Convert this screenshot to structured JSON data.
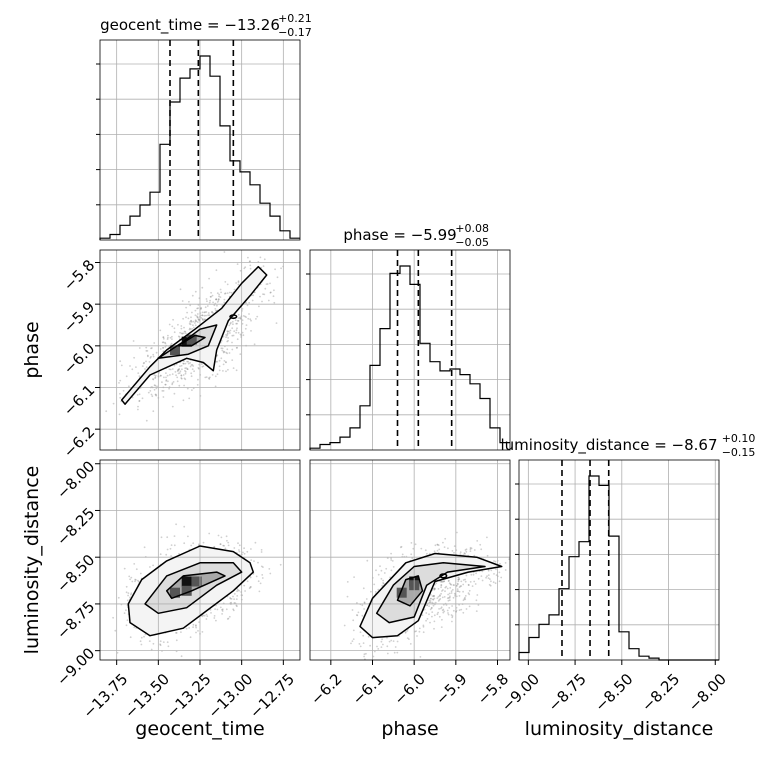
{
  "chart_data": {
    "type": "corner",
    "parameters": [
      {
        "name": "geocent_time",
        "title_main": "geocent_time = −13.26",
        "title_plus": "+0.21",
        "title_minus": "−0.17",
        "range": [
          -13.85,
          -12.65
        ],
        "ticks": [
          -13.75,
          -13.5,
          -13.25,
          -13.0,
          -12.75
        ],
        "tick_labels": [
          "−13.75",
          "−13.50",
          "−13.25",
          "−13.00",
          "−12.75"
        ],
        "quantiles": [
          -13.43,
          -13.26,
          -13.05
        ],
        "hist": [
          0.01,
          0.03,
          0.08,
          0.13,
          0.19,
          0.26,
          0.52,
          0.75,
          0.88,
          0.93,
          1.0,
          0.89,
          0.62,
          0.43,
          0.37,
          0.3,
          0.2,
          0.13,
          0.05,
          0.01
        ]
      },
      {
        "name": "phase",
        "title_main": "phase = −5.99",
        "title_plus": "+0.08",
        "title_minus": "−0.05",
        "range": [
          -6.25,
          -5.77
        ],
        "ticks": [
          -6.2,
          -6.1,
          -6.0,
          -5.9,
          -5.8
        ],
        "tick_labels": [
          "−6.2",
          "−6.1",
          "−6.0",
          "−5.9",
          "−5.8"
        ],
        "y_tick_labels": [
          "−5.8",
          "−5.9",
          "−6.0",
          "−6.1",
          "−6.2"
        ],
        "quantiles": [
          -6.04,
          -5.99,
          -5.91
        ],
        "hist": [
          0.01,
          0.03,
          0.04,
          0.07,
          0.12,
          0.24,
          0.46,
          0.66,
          0.96,
          1.0,
          0.9,
          0.58,
          0.48,
          0.43,
          0.44,
          0.41,
          0.36,
          0.28,
          0.12,
          0.04
        ]
      },
      {
        "name": "luminosity_distance",
        "title_main": "luminosity_distance = −8.67",
        "title_plus": "+0.10",
        "title_minus": "−0.15",
        "range": [
          -9.05,
          -7.98
        ],
        "ticks": [
          -9.0,
          -8.75,
          -8.5,
          -8.25,
          -8.0
        ],
        "tick_labels": [
          "−9.00",
          "−8.75",
          "−8.50",
          "−8.25",
          "−8.00"
        ],
        "y_tick_labels": [
          "−8.00",
          "−8.25",
          "−8.50",
          "−8.75",
          "−9.00"
        ],
        "quantiles": [
          -8.82,
          -8.67,
          -8.57
        ],
        "hist": [
          0.04,
          0.12,
          0.19,
          0.24,
          0.38,
          0.55,
          0.63,
          0.98,
          0.93,
          0.66,
          0.15,
          0.06,
          0.02,
          0.01,
          0.0,
          0.0,
          0.0,
          0.0,
          0.0,
          0.0
        ]
      }
    ],
    "pairs": [
      {
        "x_param": "geocent_time",
        "y_param": "phase",
        "outer": [
          [
            -13.72,
            -6.13
          ],
          [
            -13.55,
            -6.05
          ],
          [
            -13.45,
            -6.01
          ],
          [
            -13.28,
            -5.96
          ],
          [
            -13.12,
            -5.91
          ],
          [
            -13.0,
            -5.85
          ],
          [
            -12.9,
            -5.81
          ],
          [
            -12.85,
            -5.83
          ],
          [
            -12.95,
            -5.88
          ],
          [
            -13.08,
            -5.94
          ],
          [
            -13.15,
            -6.01
          ],
          [
            -13.17,
            -6.06
          ],
          [
            -13.23,
            -6.04
          ],
          [
            -13.33,
            -6.03
          ],
          [
            -13.55,
            -6.07
          ],
          [
            -13.7,
            -6.14
          ]
        ],
        "middle": [
          [
            -13.5,
            -6.03
          ],
          [
            -13.35,
            -5.99
          ],
          [
            -13.25,
            -5.96
          ],
          [
            -13.15,
            -5.95
          ],
          [
            -13.2,
            -6.0
          ],
          [
            -13.32,
            -6.02
          ]
        ],
        "inner": [
          [
            -13.38,
            -6.0
          ],
          [
            -13.28,
            -5.975
          ],
          [
            -13.22,
            -5.98
          ],
          [
            -13.3,
            -6.0
          ]
        ],
        "blobs": [
          [
            -13.05,
            -5.93,
            0.02,
            0.004
          ]
        ],
        "dense": [
          [
            -13.33,
            -5.99
          ],
          [
            -13.4,
            -6.01
          ],
          [
            -13.3,
            -5.985
          ]
        ]
      },
      {
        "x_param": "geocent_time",
        "y_param": "luminosity_distance",
        "outer": [
          [
            -13.68,
            -8.75
          ],
          [
            -13.6,
            -8.62
          ],
          [
            -13.45,
            -8.52
          ],
          [
            -13.25,
            -8.44
          ],
          [
            -13.05,
            -8.47
          ],
          [
            -12.95,
            -8.53
          ],
          [
            -12.93,
            -8.58
          ],
          [
            -13.05,
            -8.68
          ],
          [
            -13.2,
            -8.78
          ],
          [
            -13.35,
            -8.88
          ],
          [
            -13.55,
            -8.92
          ],
          [
            -13.67,
            -8.85
          ]
        ],
        "middle": [
          [
            -13.58,
            -8.75
          ],
          [
            -13.45,
            -8.6
          ],
          [
            -13.25,
            -8.53
          ],
          [
            -13.05,
            -8.53
          ],
          [
            -13.0,
            -8.58
          ],
          [
            -13.15,
            -8.65
          ],
          [
            -13.33,
            -8.77
          ],
          [
            -13.5,
            -8.8
          ]
        ],
        "inner": [
          [
            -13.45,
            -8.68
          ],
          [
            -13.35,
            -8.6
          ],
          [
            -13.15,
            -8.58
          ],
          [
            -13.1,
            -8.6
          ],
          [
            -13.3,
            -8.68
          ],
          [
            -13.42,
            -8.72
          ]
        ],
        "blobs": [],
        "dense": [
          [
            -13.33,
            -8.63
          ],
          [
            -13.27,
            -8.63
          ],
          [
            -13.4,
            -8.69
          ],
          [
            -13.33,
            -8.68
          ]
        ]
      },
      {
        "x_param": "phase",
        "y_param": "luminosity_distance",
        "outer": [
          [
            -6.13,
            -8.87
          ],
          [
            -6.1,
            -8.72
          ],
          [
            -6.02,
            -8.53
          ],
          [
            -5.95,
            -8.48
          ],
          [
            -5.85,
            -8.5
          ],
          [
            -5.79,
            -8.55
          ],
          [
            -5.87,
            -8.58
          ],
          [
            -5.95,
            -8.63
          ],
          [
            -5.99,
            -8.84
          ],
          [
            -6.04,
            -8.92
          ],
          [
            -6.1,
            -8.93
          ]
        ],
        "middle": [
          [
            -6.09,
            -8.8
          ],
          [
            -6.05,
            -8.65
          ],
          [
            -6.0,
            -8.55
          ],
          [
            -5.93,
            -8.53
          ],
          [
            -5.83,
            -8.55
          ],
          [
            -5.92,
            -8.58
          ],
          [
            -5.97,
            -8.65
          ],
          [
            -6.0,
            -8.82
          ],
          [
            -6.06,
            -8.85
          ]
        ],
        "inner": [
          [
            -6.04,
            -8.73
          ],
          [
            -6.02,
            -8.62
          ],
          [
            -5.99,
            -8.6
          ],
          [
            -5.98,
            -8.68
          ],
          [
            -6.01,
            -8.76
          ]
        ],
        "blobs": [
          [
            -5.93,
            -8.6,
            0.008,
            0.01
          ]
        ],
        "dense": [
          [
            -6.0,
            -8.63
          ],
          [
            -6.0,
            -8.65
          ],
          [
            -6.03,
            -8.69
          ]
        ]
      }
    ]
  }
}
